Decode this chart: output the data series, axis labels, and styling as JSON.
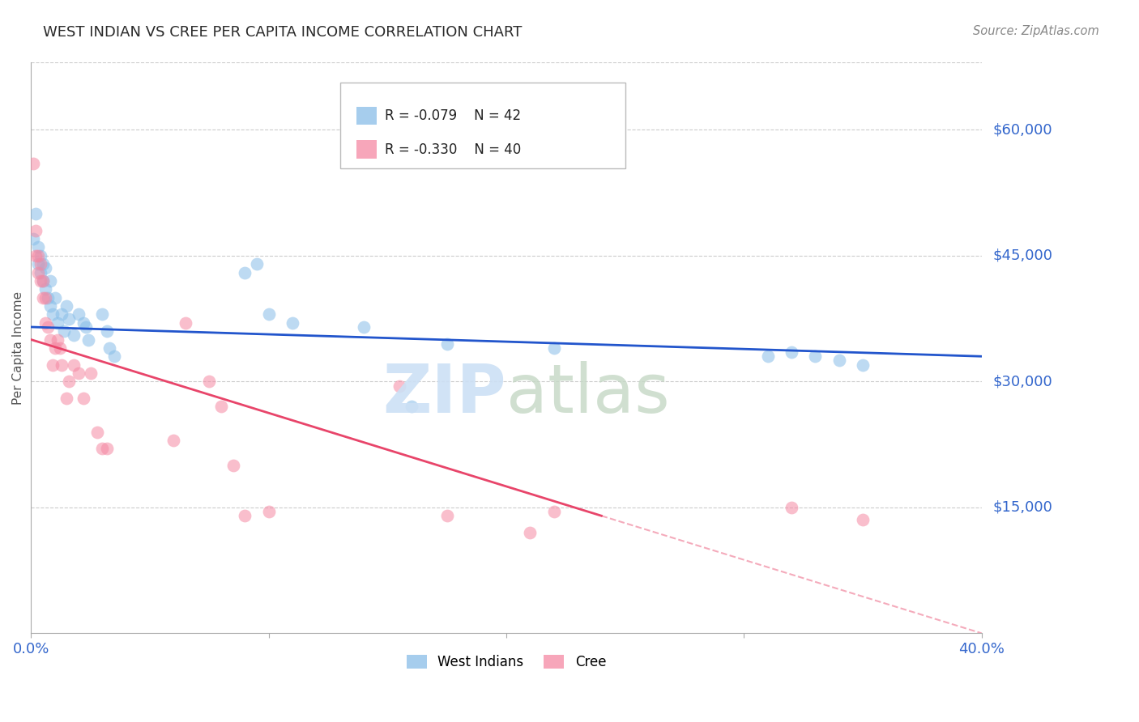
{
  "title": "WEST INDIAN VS CREE PER CAPITA INCOME CORRELATION CHART",
  "source": "Source: ZipAtlas.com",
  "ylabel": "Per Capita Income",
  "ytick_labels": [
    "$15,000",
    "$30,000",
    "$45,000",
    "$60,000"
  ],
  "ytick_values": [
    15000,
    30000,
    45000,
    60000
  ],
  "ylim": [
    0,
    68000
  ],
  "xlim": [
    0.0,
    0.4
  ],
  "legend_r1": "-0.079",
  "legend_n1": "42",
  "legend_r2": "-0.330",
  "legend_n2": "40",
  "blue_color": "#88bde8",
  "pink_color": "#f589a3",
  "line_blue": "#2255cc",
  "line_pink": "#e8456a",
  "west_indian_x": [
    0.001,
    0.002,
    0.003,
    0.003,
    0.004,
    0.004,
    0.005,
    0.005,
    0.006,
    0.006,
    0.007,
    0.008,
    0.008,
    0.009,
    0.01,
    0.011,
    0.013,
    0.014,
    0.015,
    0.016,
    0.018,
    0.02,
    0.022,
    0.023,
    0.024,
    0.03,
    0.032,
    0.033,
    0.035,
    0.09,
    0.095,
    0.1,
    0.11,
    0.14,
    0.16,
    0.175,
    0.22,
    0.31,
    0.32,
    0.33,
    0.34,
    0.35
  ],
  "west_indian_y": [
    47000,
    50000,
    44000,
    46000,
    45000,
    43000,
    44000,
    42000,
    43500,
    41000,
    40000,
    42000,
    39000,
    38000,
    40000,
    37000,
    38000,
    36000,
    39000,
    37500,
    35500,
    38000,
    37000,
    36500,
    35000,
    38000,
    36000,
    34000,
    33000,
    43000,
    44000,
    38000,
    37000,
    36500,
    27000,
    34500,
    34000,
    33000,
    33500,
    33000,
    32500,
    32000
  ],
  "cree_x": [
    0.001,
    0.002,
    0.002,
    0.003,
    0.003,
    0.004,
    0.004,
    0.005,
    0.005,
    0.006,
    0.006,
    0.007,
    0.008,
    0.009,
    0.01,
    0.011,
    0.012,
    0.013,
    0.015,
    0.016,
    0.018,
    0.02,
    0.022,
    0.025,
    0.028,
    0.03,
    0.032,
    0.06,
    0.065,
    0.075,
    0.08,
    0.085,
    0.09,
    0.1,
    0.155,
    0.175,
    0.21,
    0.22,
    0.32,
    0.35
  ],
  "cree_y": [
    56000,
    48000,
    45000,
    45000,
    43000,
    44000,
    42000,
    42000,
    40000,
    40000,
    37000,
    36500,
    35000,
    32000,
    34000,
    35000,
    34000,
    32000,
    28000,
    30000,
    32000,
    31000,
    28000,
    31000,
    24000,
    22000,
    22000,
    23000,
    37000,
    30000,
    27000,
    20000,
    14000,
    14500,
    29500,
    14000,
    12000,
    14500,
    15000,
    13500
  ],
  "marker_size": 130,
  "alpha": 0.55,
  "grid_color": "#cccccc",
  "background_color": "#ffffff",
  "title_fontsize": 13,
  "label_color": "#3366cc",
  "ylabel_color": "#555555",
  "source_color": "#888888",
  "watermark_zip_color": "#cce0f5",
  "watermark_atlas_color": "#c5d8c5"
}
